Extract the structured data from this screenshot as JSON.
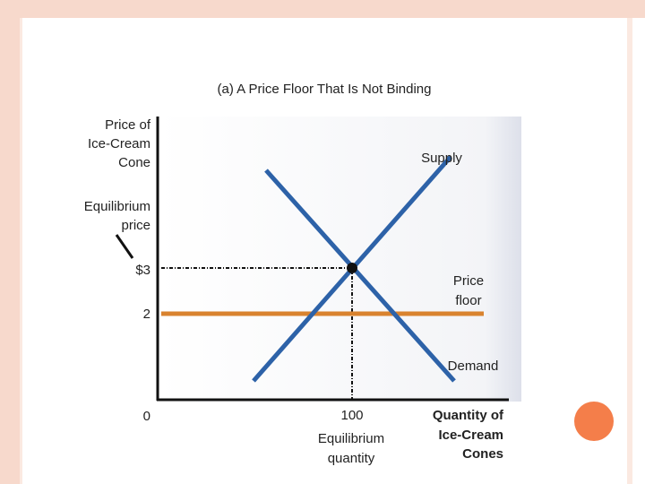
{
  "title": "(a) A Price Floor That Is Not Binding",
  "y_axis_label": [
    "Price of",
    "Ice-Cream",
    "Cone"
  ],
  "x_axis_label": [
    "Quantity of",
    "Ice-Cream",
    "Cones"
  ],
  "curves": {
    "supply": "Supply",
    "demand": "Demand",
    "price_floor": [
      "Price",
      "floor"
    ]
  },
  "equilibrium_price": {
    "label": [
      "Equilibrium",
      "price"
    ],
    "tick": "$3"
  },
  "equilibrium_quantity": {
    "label": [
      "Equilibrium",
      "quantity"
    ],
    "tick": "100"
  },
  "price_floor_tick": "2",
  "origin_tick": "0"
}
